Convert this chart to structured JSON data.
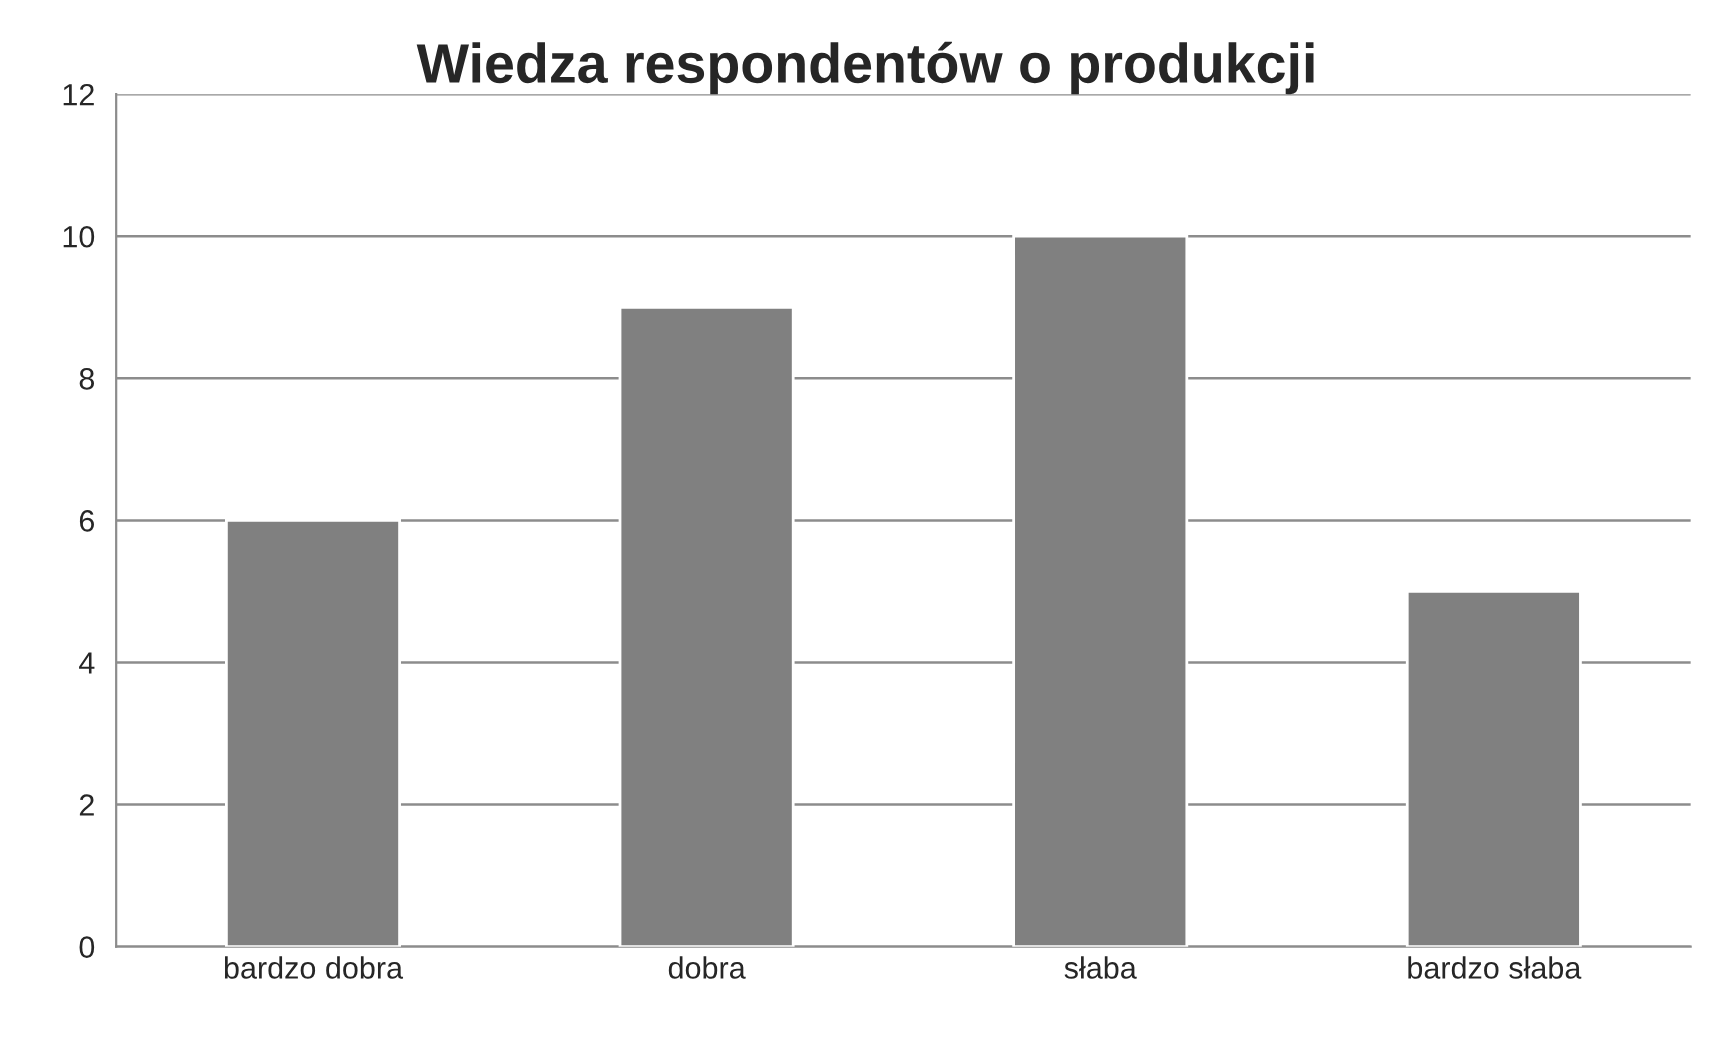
{
  "chart_data": {
    "type": "bar",
    "title": "Wiedza respondentów o produkcji",
    "categories": [
      "bardzo dobra",
      "dobra",
      "słaba",
      "bardzo słaba"
    ],
    "values": [
      6,
      9,
      10,
      5
    ],
    "color": "#808080",
    "ylim": [
      0,
      12
    ],
    "yticks": [
      0,
      2,
      4,
      6,
      8,
      10,
      12
    ],
    "grid": "y",
    "legend": false
  }
}
